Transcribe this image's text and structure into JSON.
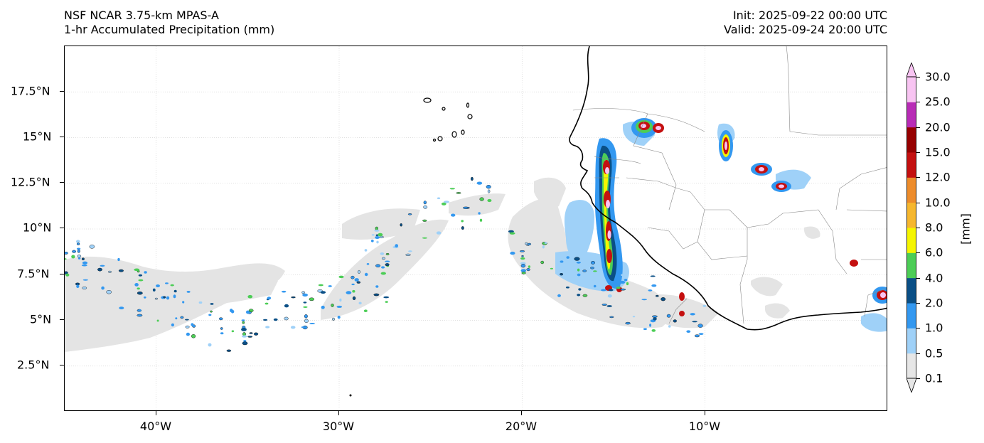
{
  "header": {
    "model": "NSF NCAR 3.75-km MPAS-A",
    "field": "1-hr Accumulated Precipitation (mm)",
    "init": "Init: 2025-09-22 00:00 UTC",
    "valid": "Valid: 2025-09-24 20:00 UTC"
  },
  "map": {
    "lon_range": [
      -45,
      0
    ],
    "lat_range": [
      0,
      20
    ],
    "lat_labels": [
      "17.5°N",
      "15°N",
      "12.5°N",
      "10°N",
      "7.5°N",
      "5°N",
      "2.5°N"
    ],
    "lat_values": [
      17.5,
      15,
      12.5,
      10,
      7.5,
      5,
      2.5
    ],
    "lon_labels": [
      "40°W",
      "30°W",
      "20°W",
      "10°W"
    ],
    "lon_values": [
      -40,
      -30,
      -20,
      -10
    ],
    "gridlines": true
  },
  "colorbar": {
    "unit": "[mm]",
    "levels": [
      "0.1",
      "0.5",
      "1.0",
      "2.0",
      "4.0",
      "6.0",
      "8.0",
      "10.0",
      "12.0",
      "15.0",
      "20.0",
      "25.0",
      "30.0"
    ],
    "colors": [
      "#e6e6e6",
      "#9fd1f8",
      "#3398f0",
      "#0a4f86",
      "#4ccd56",
      "#f5f500",
      "#f6b72e",
      "#ed8c2b",
      "#c41010",
      "#960000",
      "#b82cb6",
      "#f8c4f2"
    ],
    "extend": "both"
  }
}
